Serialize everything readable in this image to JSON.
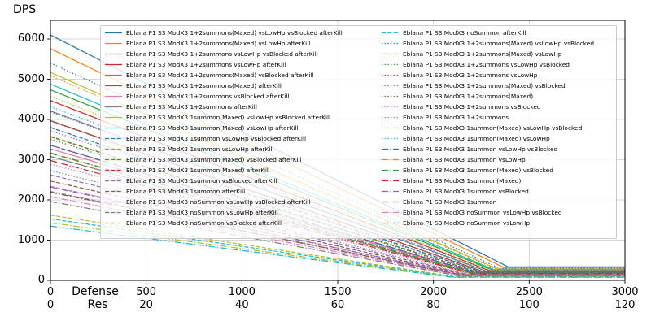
{
  "ylabel": "DPS",
  "xlabel_row1": "Defense",
  "xlabel_row2": "Res",
  "chart_data": {
    "type": "line",
    "title": "",
    "ylabel": "DPS",
    "xlabel": "Defense (top tick row) / Res (bottom tick row)",
    "xlim": [
      0,
      3000
    ],
    "res_lim": [
      0,
      120
    ],
    "ylim": [
      0,
      6465
    ],
    "grid": true,
    "legend_position": "upper center, 2 columns, semi-transparent white box",
    "y_ticks": [
      0,
      1000,
      2000,
      3000,
      4000,
      5000,
      6000
    ],
    "x_ticks_defense": [
      0,
      500,
      1000,
      1500,
      2000,
      2500,
      3000
    ],
    "x_ticks_res": [
      0,
      20,
      40,
      60,
      80,
      100,
      120
    ],
    "model_note": "Each series decreases linearly from start_dps at Defense=0 to floor_dps at knee_defense, then stays flat to Defense=3000.",
    "series": [
      {
        "name": "Eblana P1 S3 ModX3 1+2summons(Maxed) vsLowHp vsBlocked afterKill",
        "color": "#1f77b4",
        "style": "solid",
        "start_dps": 6100,
        "floor_dps": 336,
        "knee_defense": 2390
      },
      {
        "name": "Eblana P1 S3 ModX3 1+2summons(Maxed) vsLowHp afterKill",
        "color": "#ff7f0e",
        "style": "solid",
        "start_dps": 5760,
        "floor_dps": 317,
        "knee_defense": 2369
      },
      {
        "name": "Eblana P1 S3 ModX3 1+2summons vsLowHp vsBlocked afterKill",
        "color": "#2ca02c",
        "style": "solid",
        "start_dps": 4740,
        "floor_dps": 261,
        "knee_defense": 2307
      },
      {
        "name": "Eblana P1 S3 ModX3 1+2summons vsLowHp afterKill",
        "color": "#d62728",
        "style": "solid",
        "start_dps": 4470,
        "floor_dps": 246,
        "knee_defense": 2290
      },
      {
        "name": "Eblana P1 S3 ModX3 1+2summons(Maxed) vsBlocked afterKill",
        "color": "#9467bd",
        "style": "solid",
        "start_dps": 4210,
        "floor_dps": 232,
        "knee_defense": 2275
      },
      {
        "name": "Eblana P1 S3 ModX3 1+2summons(Maxed) afterKill",
        "color": "#8c564b",
        "style": "solid",
        "start_dps": 3970,
        "floor_dps": 218,
        "knee_defense": 2260
      },
      {
        "name": "Eblana P1 S3 ModX3 1+2summons vsBlocked afterKill",
        "color": "#e377c2",
        "style": "solid",
        "start_dps": 3270,
        "floor_dps": 180,
        "knee_defense": 2217
      },
      {
        "name": "Eblana P1 S3 ModX3 1+2summons afterKill",
        "color": "#7f7f7f",
        "style": "solid",
        "start_dps": 3080,
        "floor_dps": 169,
        "knee_defense": 2206
      },
      {
        "name": "Eblana P1 S3 ModX3 1summon(Maxed) vsLowHp vsBlocked afterKill",
        "color": "#bcbd22",
        "style": "solid",
        "start_dps": 5170,
        "floor_dps": 284,
        "knee_defense": 2333
      },
      {
        "name": "Eblana P1 S3 ModX3 1summon(Maxed) vsLowHp afterKill",
        "color": "#17becf",
        "style": "solid",
        "start_dps": 4880,
        "floor_dps": 268,
        "knee_defense": 2316
      },
      {
        "name": "Eblana P1 S3 ModX3 1summon vsLowHp vsBlocked afterKill",
        "color": "#1f77b4",
        "style": "dashed",
        "start_dps": 3800,
        "floor_dps": 209,
        "knee_defense": 2250
      },
      {
        "name": "Eblana P1 S3 ModX3 1summon vsLowHp afterKill",
        "color": "#ff7f0e",
        "style": "dashed",
        "start_dps": 3580,
        "floor_dps": 197,
        "knee_defense": 2236
      },
      {
        "name": "Eblana P1 S3 ModX3 1summon(Maxed) vsBlocked afterKill",
        "color": "#2ca02c",
        "style": "dashed",
        "start_dps": 3570,
        "floor_dps": 196,
        "knee_defense": 2236
      },
      {
        "name": "Eblana P1 S3 ModX3 1summon(Maxed) afterKill",
        "color": "#d62728",
        "style": "dashed",
        "start_dps": 3360,
        "floor_dps": 185,
        "knee_defense": 2223
      },
      {
        "name": "Eblana P1 S3 ModX3 1summon vsBlocked afterKill",
        "color": "#9467bd",
        "style": "dashed",
        "start_dps": 2620,
        "floor_dps": 144,
        "knee_defense": 2178
      },
      {
        "name": "Eblana P1 S3 ModX3 1summon afterKill",
        "color": "#8c564b",
        "style": "dashed",
        "start_dps": 2470,
        "floor_dps": 136,
        "knee_defense": 2168
      },
      {
        "name": "Eblana P1 S3 ModX3 noSummon vsLowHp vsBlocked afterKill",
        "color": "#e377c2",
        "style": "dashed",
        "start_dps": 2340,
        "floor_dps": 129,
        "knee_defense": 2160
      },
      {
        "name": "Eblana P1 S3 ModX3 noSummon vsLowHp afterKill",
        "color": "#7f7f7f",
        "style": "dashed",
        "start_dps": 2210,
        "floor_dps": 122,
        "knee_defense": 2153
      },
      {
        "name": "Eblana P1 S3 ModX3 noSummon vsBlocked afterKill",
        "color": "#bcbd22",
        "style": "dashed",
        "start_dps": 1620,
        "floor_dps": 89,
        "knee_defense": 2116
      },
      {
        "name": "Eblana P1 S3 ModX3 noSummon afterKill",
        "color": "#17becf",
        "style": "dashed",
        "start_dps": 1530,
        "floor_dps": 84,
        "knee_defense": 2111
      },
      {
        "name": "Eblana P1 S3 ModX3 1+2summons(Maxed) vsLowHp vsBlocked",
        "color": "#1f77b4",
        "style": "dotted",
        "start_dps": 5400,
        "floor_dps": 297,
        "knee_defense": 2347
      },
      {
        "name": "Eblana P1 S3 ModX3 1+2summons(Maxed) vsLowHp",
        "color": "#ff7f0e",
        "style": "dotted",
        "start_dps": 5090,
        "floor_dps": 280,
        "knee_defense": 2328
      },
      {
        "name": "Eblana P1 S3 ModX3 1+2summons vsLowHp vsBlocked",
        "color": "#2ca02c",
        "style": "dotted",
        "start_dps": 4190,
        "floor_dps": 230,
        "knee_defense": 2273
      },
      {
        "name": "Eblana P1 S3 ModX3 1+2summons vsLowHp",
        "color": "#d62728",
        "style": "dotted",
        "start_dps": 3960,
        "floor_dps": 218,
        "knee_defense": 2259
      },
      {
        "name": "Eblana P1 S3 ModX3 1+2summons(Maxed) vsBlocked",
        "color": "#9467bd",
        "style": "dotted",
        "start_dps": 3720,
        "floor_dps": 205,
        "knee_defense": 2245
      },
      {
        "name": "Eblana P1 S3 ModX3 1+2summons(Maxed)",
        "color": "#8c564b",
        "style": "dotted",
        "start_dps": 3510,
        "floor_dps": 193,
        "knee_defense": 2232
      },
      {
        "name": "Eblana P1 S3 ModX3 1+2summons vsBlocked",
        "color": "#e377c2",
        "style": "dotted",
        "start_dps": 2890,
        "floor_dps": 159,
        "knee_defense": 2194
      },
      {
        "name": "Eblana P1 S3 ModX3 1+2summons",
        "color": "#7f7f7f",
        "style": "dotted",
        "start_dps": 2730,
        "floor_dps": 150,
        "knee_defense": 2184
      },
      {
        "name": "Eblana P1 S3 ModX3 1summon(Maxed) vsLowHp vsBlocked",
        "color": "#bcbd22",
        "style": "dotted",
        "start_dps": 4580,
        "floor_dps": 252,
        "knee_defense": 2297
      },
      {
        "name": "Eblana P1 S3 ModX3 1summon(Maxed) vsLowHp",
        "color": "#17becf",
        "style": "dotted",
        "start_dps": 4320,
        "floor_dps": 238,
        "knee_defense": 2281
      },
      {
        "name": "Eblana P1 S3 ModX3 1summon vsLowHp vsBlocked",
        "color": "#1f77b4",
        "style": "dashdot",
        "start_dps": 3360,
        "floor_dps": 185,
        "knee_defense": 2223
      },
      {
        "name": "Eblana P1 S3 ModX3 1summon vsLowHp",
        "color": "#ff7f0e",
        "style": "dashdot",
        "start_dps": 3170,
        "floor_dps": 174,
        "knee_defense": 2211
      },
      {
        "name": "Eblana P1 S3 ModX3 1summon(Maxed) vsBlocked",
        "color": "#2ca02c",
        "style": "dashdot",
        "start_dps": 3160,
        "floor_dps": 174,
        "knee_defense": 2211
      },
      {
        "name": "Eblana P1 S3 ModX3 1summon(Maxed)",
        "color": "#d62728",
        "style": "dashdot",
        "start_dps": 2980,
        "floor_dps": 164,
        "knee_defense": 2200
      },
      {
        "name": "Eblana P1 S3 ModX3 1summon vsBlocked",
        "color": "#9467bd",
        "style": "dashdot",
        "start_dps": 2320,
        "floor_dps": 128,
        "knee_defense": 2159
      },
      {
        "name": "Eblana P1 S3 ModX3 1summon",
        "color": "#8c564b",
        "style": "dashdot",
        "start_dps": 2190,
        "floor_dps": 120,
        "knee_defense": 2151
      },
      {
        "name": "Eblana P1 S3 ModX3 noSummon vsLowHp vsBlocked",
        "color": "#e377c2",
        "style": "dashdot",
        "start_dps": 2080,
        "floor_dps": 114,
        "knee_defense": 2145
      },
      {
        "name": "Eblana P1 S3 ModX3 noSummon vsLowHp",
        "color": "#7f7f7f",
        "style": "dashdot",
        "start_dps": 1960,
        "floor_dps": 108,
        "knee_defense": 2137
      },
      {
        "name": "Eblana P1 S3 ModX3 noSummon vsBlocked",
        "color": "#bcbd22",
        "style": "dashdot",
        "start_dps": 1430,
        "floor_dps": 79,
        "knee_defense": 2105
      },
      {
        "name": "Eblana P1 S3 ModX3 noSummon",
        "color": "#17becf",
        "style": "dashdot",
        "start_dps": 1350,
        "floor_dps": 74,
        "knee_defense": 2100
      }
    ]
  }
}
